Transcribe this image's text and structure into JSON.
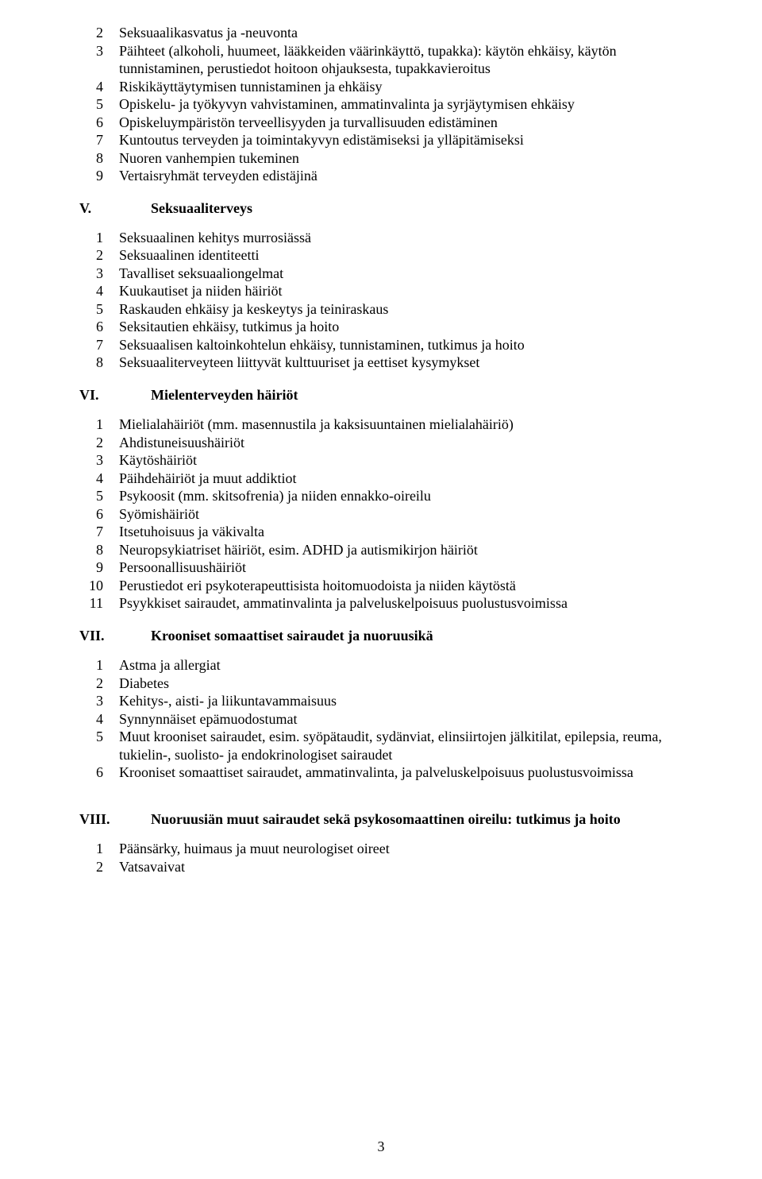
{
  "font_family": "Times New Roman",
  "text_color": "#000000",
  "background_color": "#ffffff",
  "base_font_size_pt": 14,
  "page_number": "3",
  "blocks": [
    {
      "type": "items",
      "items": [
        {
          "n": "2",
          "t": "Seksuaalikasvatus ja -neuvonta"
        },
        {
          "n": "3",
          "t": "Päihteet (alkoholi, huumeet, lääkkeiden väärinkäyttö, tupakka): käytön ehkäisy, käytön tunnistaminen, perustiedot hoitoon ohjauksesta, tupakkavieroitus"
        },
        {
          "n": "4",
          "t": "Riskikäyttäytymisen tunnistaminen ja ehkäisy"
        },
        {
          "n": "5",
          "t": "Opiskelu- ja työkyvyn vahvistaminen, ammatinvalinta ja syrjäytymisen ehkäisy"
        },
        {
          "n": "6",
          "t": "Opiskeluympäristön terveellisyyden ja turvallisuuden edistäminen"
        },
        {
          "n": "7",
          "t": "Kuntoutus terveyden ja toimintakyvyn edistämiseksi ja ylläpitämiseksi"
        },
        {
          "n": "8",
          "t": "Nuoren vanhempien tukeminen"
        },
        {
          "n": "9",
          "t": "Vertaisryhmät terveyden edistäjinä"
        }
      ]
    },
    {
      "type": "section",
      "num": "V.",
      "title": "Seksuaaliterveys"
    },
    {
      "type": "items",
      "items": [
        {
          "n": "1",
          "t": "Seksuaalinen kehitys murrosiässä"
        },
        {
          "n": "2",
          "t": "Seksuaalinen identiteetti"
        },
        {
          "n": "3",
          "t": "Tavalliset seksuaaliongelmat"
        },
        {
          "n": "4",
          "t": "Kuukautiset ja niiden häiriöt"
        },
        {
          "n": "5",
          "t": "Raskauden ehkäisy ja keskeytys ja teiniraskaus"
        },
        {
          "n": "6",
          "t": "Seksitautien ehkäisy, tutkimus ja hoito"
        },
        {
          "n": "7",
          "t": "Seksuaalisen kaltoinkohtelun ehkäisy, tunnistaminen, tutkimus ja hoito"
        },
        {
          "n": "8",
          "t": "Seksuaaliterveyteen liittyvät kulttuuriset ja eettiset kysymykset"
        }
      ]
    },
    {
      "type": "section",
      "num": "VI.",
      "title": "Mielenterveyden häiriöt"
    },
    {
      "type": "items",
      "items": [
        {
          "n": "1",
          "t": "Mielialahäiriöt (mm. masennustila ja kaksisuuntainen mielialahäiriö)"
        },
        {
          "n": "2",
          "t": "Ahdistuneisuushäiriöt"
        },
        {
          "n": "3",
          "t": "Käytöshäiriöt"
        },
        {
          "n": "4",
          "t": "Päihdehäiriöt ja muut addiktiot"
        },
        {
          "n": "5",
          "t": "Psykoosit (mm. skitsofrenia) ja niiden ennakko-oireilu"
        },
        {
          "n": "6",
          "t": "Syömishäiriöt"
        },
        {
          "n": "7",
          "t": "Itsetuhoisuus ja väkivalta"
        },
        {
          "n": "8",
          "t": "Neuropsykiatriset häiriöt, esim. ADHD ja autismikirjon häiriöt"
        },
        {
          "n": "9",
          "t": "Persoonallisuushäiriöt"
        },
        {
          "n": "10",
          "t": "Perustiedot eri psykoterapeuttisista hoitomuodoista ja niiden käytöstä"
        },
        {
          "n": "11",
          "t": "Psyykkiset sairaudet, ammatinvalinta ja palveluskelpoisuus puolustusvoimissa"
        }
      ]
    },
    {
      "type": "section",
      "num": "VII.",
      "title": "Krooniset somaattiset sairaudet ja nuoruusikä"
    },
    {
      "type": "items",
      "items": [
        {
          "n": "1",
          "t": "Astma ja allergiat"
        },
        {
          "n": "2",
          "t": "Diabetes"
        },
        {
          "n": "3",
          "t": "Kehitys-, aisti- ja liikuntavammaisuus"
        },
        {
          "n": "4",
          "t": "Synnynnäiset epämuodostumat"
        },
        {
          "n": "5",
          "t": "Muut krooniset sairaudet, esim. syöpätaudit, sydänviat, elinsiirtojen jälkitilat, epilepsia, reuma, tukielin-, suolisto- ja endokrinologiset sairaudet"
        },
        {
          "n": "6",
          "t": "Krooniset somaattiset sairaudet, ammatinvalinta, ja palveluskelpoisuus puolustusvoimissa"
        }
      ]
    },
    {
      "type": "section",
      "num": "VIII.",
      "title": "Nuoruusiän muut sairaudet sekä psykosomaattinen oireilu: tutkimus ja hoito",
      "extra_gap": true
    },
    {
      "type": "items",
      "items": [
        {
          "n": "1",
          "t": "Päänsärky, huimaus ja muut neurologiset oireet"
        },
        {
          "n": "2",
          "t": "Vatsavaivat"
        }
      ]
    }
  ]
}
